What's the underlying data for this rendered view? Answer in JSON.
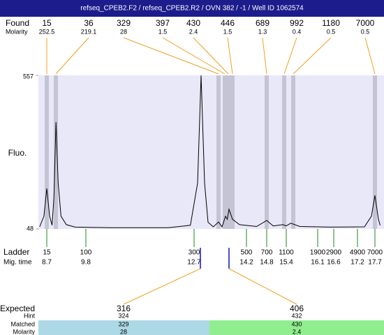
{
  "title": "refseq_CPEB2.F2 / refseq_CPEB2.R2 / OVN 382 / -1 / Well ID 1062574",
  "found": {
    "label": "Found",
    "sizes": [
      15,
      36,
      329,
      397,
      430,
      446,
      689,
      992,
      1180,
      7000
    ],
    "molarity_label": "Molarity",
    "molarity": [
      252.5,
      219.1,
      28,
      1.5,
      2.4,
      1.5,
      1.3,
      0.4,
      0.5,
      0.5
    ]
  },
  "y_axis": {
    "label": "Fluo.",
    "ylim": [
      48,
      557
    ],
    "yticks": [
      48,
      557
    ]
  },
  "ladder": {
    "label": "Ladder",
    "sizes": [
      15,
      100,
      300,
      500,
      700,
      1100,
      1900,
      2900,
      4900,
      7000
    ],
    "mig_time_label": "Mig. time",
    "mig_times": [
      8.7,
      9.8,
      12.7,
      14.2,
      14.8,
      15.4,
      16.1,
      16.6,
      17.2,
      17.7
    ]
  },
  "trace": {
    "mig_time": [
      8.5,
      8.62,
      8.7,
      8.78,
      8.85,
      8.9,
      8.96,
      9.02,
      9.1,
      9.25,
      9.5,
      10.5,
      12.0,
      12.6,
      12.8,
      12.9,
      13.0,
      13.1,
      13.25,
      13.4,
      13.5,
      13.6,
      13.65,
      13.7,
      13.8,
      14.0,
      14.5,
      14.8,
      15.0,
      15.3,
      15.4,
      15.5,
      15.7,
      16.5,
      17.4,
      17.6,
      17.7,
      17.8,
      17.85
    ],
    "fluo": [
      55,
      90,
      182,
      90,
      60,
      150,
      402,
      200,
      90,
      62,
      54,
      52,
      52,
      60,
      200,
      557,
      200,
      70,
      55,
      71,
      55,
      90,
      80,
      113,
      80,
      62,
      56,
      76,
      58,
      62,
      58,
      67,
      56,
      54,
      55,
      90,
      159,
      80,
      60
    ]
  },
  "expected": {
    "label": "Expected",
    "values": [
      316,
      406
    ],
    "hint_label": "Hint",
    "hint": [
      324,
      432
    ],
    "matched_label": "Matched",
    "matched": [
      329,
      430
    ],
    "molarity_label": "Molarity",
    "molarity": [
      28,
      2.4
    ]
  }
}
